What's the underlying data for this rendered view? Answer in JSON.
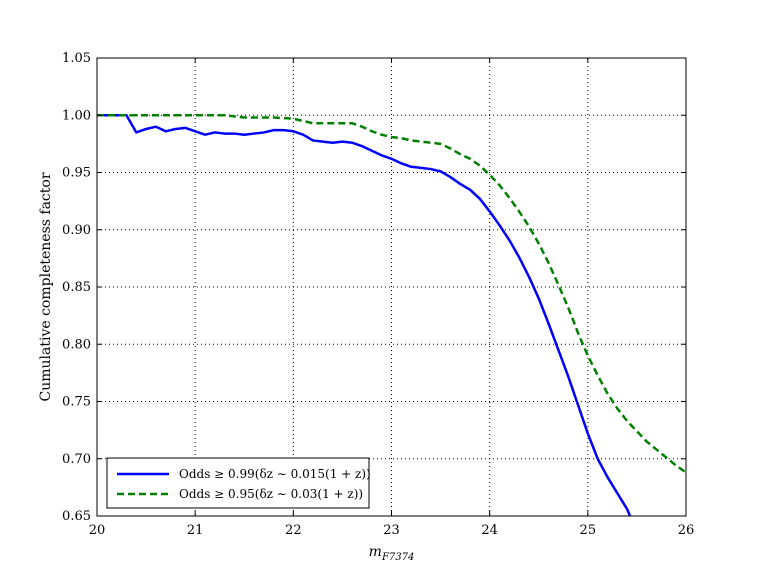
{
  "chart_data": {
    "type": "line",
    "title": "",
    "xlabel": "m_{F7374}",
    "ylabel": "Cumulative completeness factor",
    "xlim": [
      20,
      26
    ],
    "ylim": [
      0.65,
      1.05
    ],
    "xticks": [
      20,
      21,
      22,
      23,
      24,
      25,
      26
    ],
    "yticks": [
      0.65,
      0.7,
      0.75,
      0.8,
      0.85,
      0.9,
      0.95,
      1.0,
      1.05
    ],
    "grid": true,
    "legend_position": "lower-left",
    "series": [
      {
        "name": "Odds ≥ 0.99(δz ∼ 0.015(1 + z))",
        "color": "#0000ff",
        "style": "solid",
        "x": [
          20.0,
          20.1,
          20.2,
          20.3,
          20.4,
          20.5,
          20.6,
          20.7,
          20.8,
          20.9,
          21.0,
          21.1,
          21.2,
          21.3,
          21.4,
          21.5,
          21.6,
          21.7,
          21.8,
          21.9,
          22.0,
          22.1,
          22.2,
          22.3,
          22.4,
          22.5,
          22.6,
          22.7,
          22.8,
          22.9,
          23.0,
          23.1,
          23.2,
          23.3,
          23.4,
          23.5,
          23.6,
          23.7,
          23.8,
          23.9,
          24.0,
          24.1,
          24.2,
          24.3,
          24.4,
          24.5,
          24.6,
          24.7,
          24.8,
          24.9,
          25.0,
          25.1,
          25.2,
          25.3,
          25.4,
          25.43
        ],
        "y": [
          1.0,
          1.0,
          1.0,
          1.0,
          0.985,
          0.988,
          0.99,
          0.986,
          0.988,
          0.989,
          0.986,
          0.983,
          0.985,
          0.984,
          0.984,
          0.983,
          0.984,
          0.985,
          0.987,
          0.987,
          0.986,
          0.983,
          0.978,
          0.977,
          0.976,
          0.977,
          0.976,
          0.973,
          0.969,
          0.965,
          0.962,
          0.958,
          0.955,
          0.954,
          0.953,
          0.951,
          0.946,
          0.94,
          0.935,
          0.927,
          0.916,
          0.904,
          0.891,
          0.876,
          0.859,
          0.84,
          0.818,
          0.795,
          0.772,
          0.747,
          0.722,
          0.7,
          0.684,
          0.67,
          0.656,
          0.65
        ]
      },
      {
        "name": "Odds ≥ 0.95(δz ∼ 0.03(1 + z))",
        "color": "#008000",
        "style": "dashed",
        "x": [
          20.0,
          20.3,
          20.5,
          20.8,
          21.0,
          21.3,
          21.5,
          21.8,
          22.0,
          22.2,
          22.4,
          22.6,
          22.7,
          22.8,
          22.9,
          23.0,
          23.1,
          23.2,
          23.3,
          23.4,
          23.5,
          23.6,
          23.7,
          23.8,
          23.9,
          24.0,
          24.1,
          24.2,
          24.3,
          24.4,
          24.5,
          24.6,
          24.7,
          24.8,
          24.9,
          25.0,
          25.1,
          25.2,
          25.3,
          25.4,
          25.5,
          25.6,
          25.7,
          25.8,
          25.9,
          26.0
        ],
        "y": [
          1.0,
          1.0,
          1.0,
          1.0,
          1.0,
          1.0,
          0.998,
          0.998,
          0.997,
          0.993,
          0.993,
          0.993,
          0.99,
          0.986,
          0.983,
          0.981,
          0.98,
          0.978,
          0.977,
          0.976,
          0.975,
          0.971,
          0.966,
          0.962,
          0.956,
          0.948,
          0.939,
          0.928,
          0.916,
          0.903,
          0.888,
          0.871,
          0.852,
          0.832,
          0.81,
          0.79,
          0.773,
          0.757,
          0.744,
          0.733,
          0.724,
          0.715,
          0.708,
          0.701,
          0.694,
          0.688
        ]
      }
    ]
  }
}
